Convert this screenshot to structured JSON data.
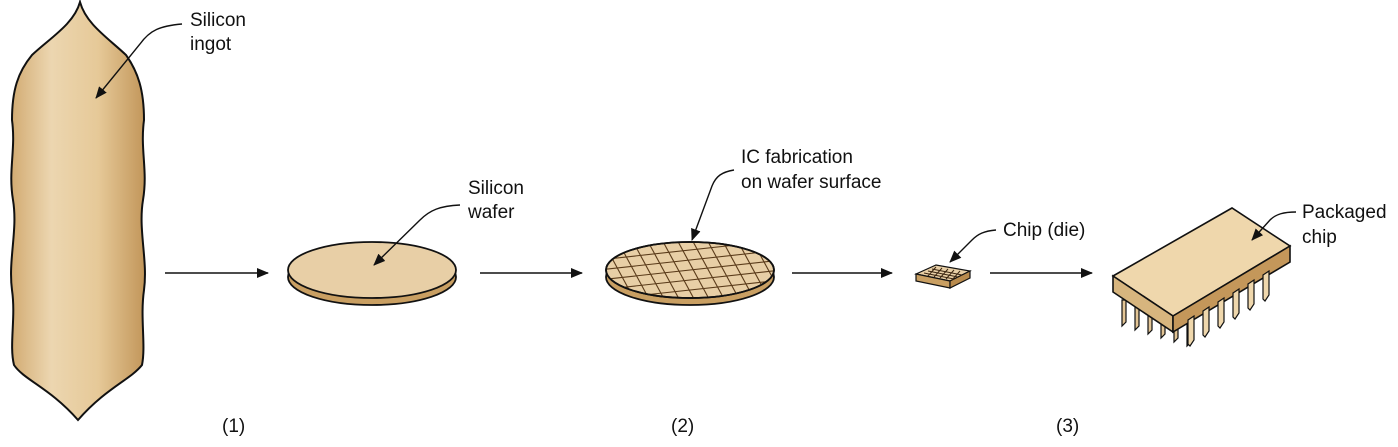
{
  "labels": {
    "ingot_line1": "Silicon",
    "ingot_line2": "ingot",
    "wafer_line1": "Silicon",
    "wafer_line2": "wafer",
    "fab_line1": "IC fabrication",
    "fab_line2": "on wafer surface",
    "die": "Chip (die)",
    "pkg_line1": "Packaged",
    "pkg_line2": "chip"
  },
  "steps": [
    "(1)",
    "(2)",
    "(3)"
  ],
  "colors": {
    "material_fill": "#e8cfa6",
    "material_shade": "#c99f62",
    "outline": "#111111",
    "package_fill": "#efd7ac"
  }
}
